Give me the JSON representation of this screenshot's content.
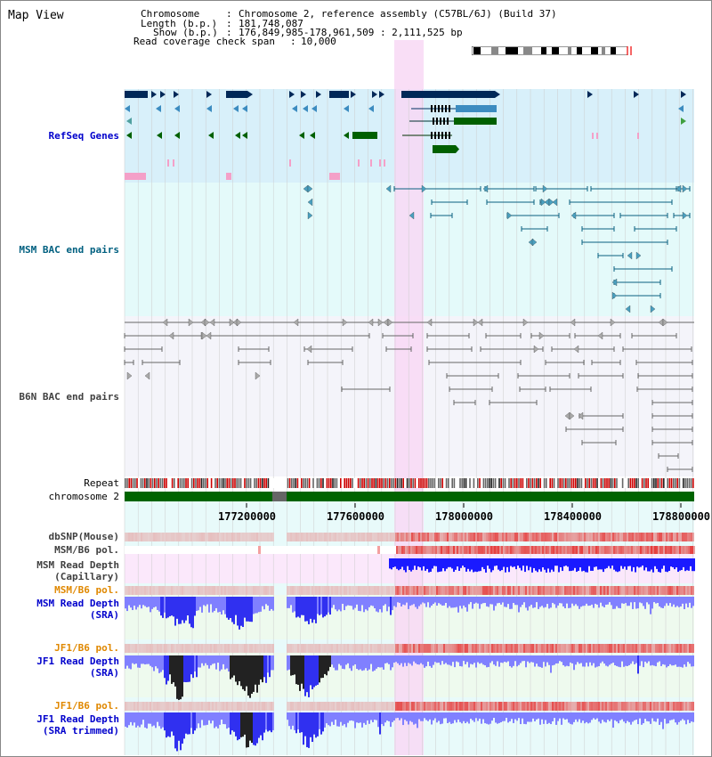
{
  "header": {
    "title": "Map View",
    "chromosome_label": "Chromosome",
    "chromosome_value": "Chromosome 2, reference assembly (C57BL/6J) (Build 37)",
    "length_label": "Length (b.p.)",
    "length_value": "181,748,087",
    "show_label": "Show (b.p.)",
    "show_value": "176,849,985-178,961,509 : 2,111,525 bp",
    "coverage_label": "Read coverage check span",
    "coverage_value": "10,000"
  },
  "tracks": {
    "refseq": "RefSeq Genes",
    "msm_bac": "MSM BAC end pairs",
    "b6n_bac": "B6N BAC end pairs",
    "repeat": "Repeat",
    "chromosome": "chromosome 2",
    "dbsnp": "dbSNP(Mouse)",
    "msm_b6_pol_1": "MSM/B6 pol.",
    "msm_read_depth_cap_1": "MSM Read Depth",
    "msm_read_depth_cap_2": "(Capillary)",
    "msm_b6_pol_2": "MSM/B6 pol.",
    "msm_read_depth_sra_1": "MSM Read Depth",
    "msm_read_depth_sra_2": "(SRA)",
    "jf1_b6_pol_1": "JF1/B6 pol.",
    "jf1_read_depth_sra_1": "JF1 Read Depth",
    "jf1_read_depth_sra_2": "(SRA)",
    "jf1_b6_pol_2": "JF1/B6 pol.",
    "jf1_read_depth_trim_1": "JF1 Read Depth",
    "jf1_read_depth_trim_2": "(SRA trimmed)"
  },
  "axis": {
    "ticks": [
      "177200000",
      "177600000",
      "178000000",
      "178400000",
      "178800000"
    ]
  },
  "colors": {
    "refseq_bg": "#d8f0fa",
    "msm_bg": "#e4fafa",
    "b6n_bg": "#f4f4fa",
    "highlight": "#f8d8f4",
    "label_blue": "#0000cc",
    "label_teal": "#006080",
    "label_gray": "#404040",
    "label_orange": "#e08800",
    "gene_navy": "#002858",
    "gene_blue": "#3c8cc0",
    "gene_green": "#006000",
    "chrom_green": "#006400"
  }
}
